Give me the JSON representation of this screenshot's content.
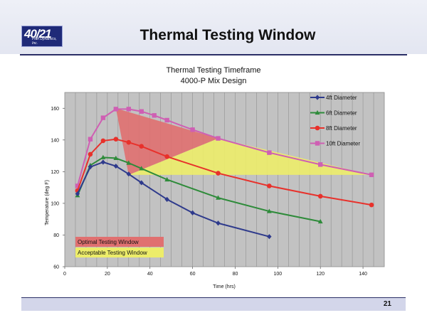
{
  "slide": {
    "title": "Thermal Testing Window",
    "page_number": "21",
    "logo": {
      "text": "40/21",
      "subtext": "Plan Dynamics, Inc."
    }
  },
  "chart_data": {
    "type": "line",
    "title": "Thermal Testing Timeframe",
    "subtitle": "4000-P Mix Design",
    "xlabel": "Time (hrs)",
    "ylabel": "Temperature (deg F)",
    "xlim": [
      0,
      150
    ],
    "ylim": [
      60,
      170
    ],
    "xticks": [
      0,
      20,
      40,
      60,
      80,
      100,
      120,
      140
    ],
    "yticks": [
      60,
      80,
      100,
      120,
      140,
      160
    ],
    "grid": "vertical",
    "legend_position": "top-right",
    "series": [
      {
        "name": "4ft Diameter",
        "color": "#2e3a8c",
        "marker": "diamond",
        "points": [
          [
            6,
            106
          ],
          [
            12,
            123
          ],
          [
            18,
            126
          ],
          [
            24,
            123.5
          ],
          [
            30,
            118.5
          ],
          [
            36,
            113
          ],
          [
            48,
            102.5
          ],
          [
            60,
            94
          ],
          [
            72,
            87.5
          ],
          [
            96,
            79
          ]
        ]
      },
      {
        "name": "6ft Diameter",
        "color": "#2e8b3a",
        "marker": "triangle",
        "points": [
          [
            6,
            105
          ],
          [
            12,
            124
          ],
          [
            18,
            129
          ],
          [
            24,
            128.5
          ],
          [
            30,
            125.5
          ],
          [
            36,
            122
          ],
          [
            48,
            115
          ],
          [
            72,
            103.5
          ],
          [
            96,
            95
          ],
          [
            120,
            88.5
          ]
        ]
      },
      {
        "name": "8ft Diameter",
        "color": "#e8312b",
        "marker": "circle",
        "points": [
          [
            6,
            108
          ],
          [
            12,
            131
          ],
          [
            18,
            139.5
          ],
          [
            24,
            140.5
          ],
          [
            30,
            138.5
          ],
          [
            36,
            136
          ],
          [
            48,
            129.5
          ],
          [
            72,
            119
          ],
          [
            96,
            111
          ],
          [
            120,
            104.5
          ],
          [
            144,
            99
          ]
        ]
      },
      {
        "name": "10ft Diameter",
        "color": "#cf5fb3",
        "marker": "square",
        "points": [
          [
            6,
            111
          ],
          [
            12,
            140.5
          ],
          [
            18,
            154
          ],
          [
            24,
            159.5
          ],
          [
            30,
            159.5
          ],
          [
            36,
            158
          ],
          [
            42,
            155.5
          ],
          [
            48,
            152.5
          ],
          [
            60,
            146.5
          ],
          [
            72,
            141
          ],
          [
            96,
            132
          ],
          [
            120,
            124.5
          ],
          [
            144,
            118
          ]
        ]
      }
    ],
    "regions": [
      {
        "name": "Optimal Testing Window",
        "color": "#e07070",
        "points": [
          [
            24,
            160
          ],
          [
            72,
            141
          ],
          [
            30,
            118
          ]
        ]
      },
      {
        "name": "Acceptable Testing Window",
        "color": "#eded6a",
        "points": [
          [
            30,
            118
          ],
          [
            72,
            141
          ],
          [
            144,
            118
          ]
        ]
      }
    ]
  }
}
